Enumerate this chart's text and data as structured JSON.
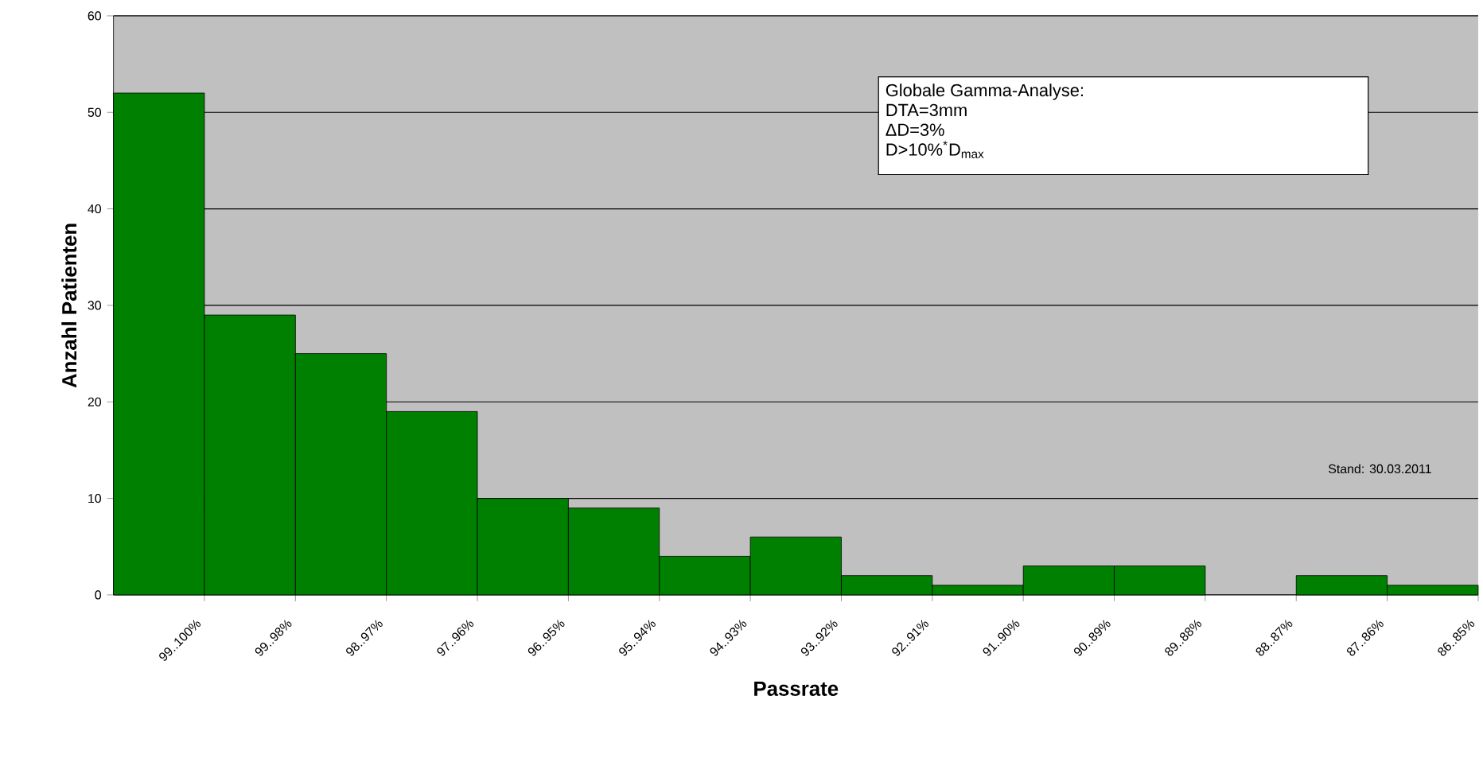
{
  "chart_data": {
    "type": "bar",
    "xlabel": "Passrate",
    "ylabel": "Anzahl Patienten",
    "categories": [
      "99..100%",
      "99..98%",
      "98..97%",
      "97..96%",
      "96..95%",
      "95..94%",
      "94..93%",
      "93..92%",
      "92..91%",
      "91..90%",
      "90..89%",
      "89..88%",
      "88..87%",
      "87..86%",
      "86..85%"
    ],
    "values": [
      52,
      29,
      25,
      19,
      10,
      9,
      4,
      6,
      2,
      1,
      3,
      3,
      0,
      2,
      1
    ],
    "color": "#008000",
    "ylim": [
      0,
      60
    ],
    "yticks": [
      0,
      10,
      20,
      30,
      40,
      50,
      60
    ],
    "grid": "y",
    "annotations": [
      "Globale Gamma-Analyse:",
      "DTA=3mm",
      "ΔD=3%",
      "D>10%$^{*}$D$_{max}$",
      "Stand: 30.03.2011"
    ]
  }
}
